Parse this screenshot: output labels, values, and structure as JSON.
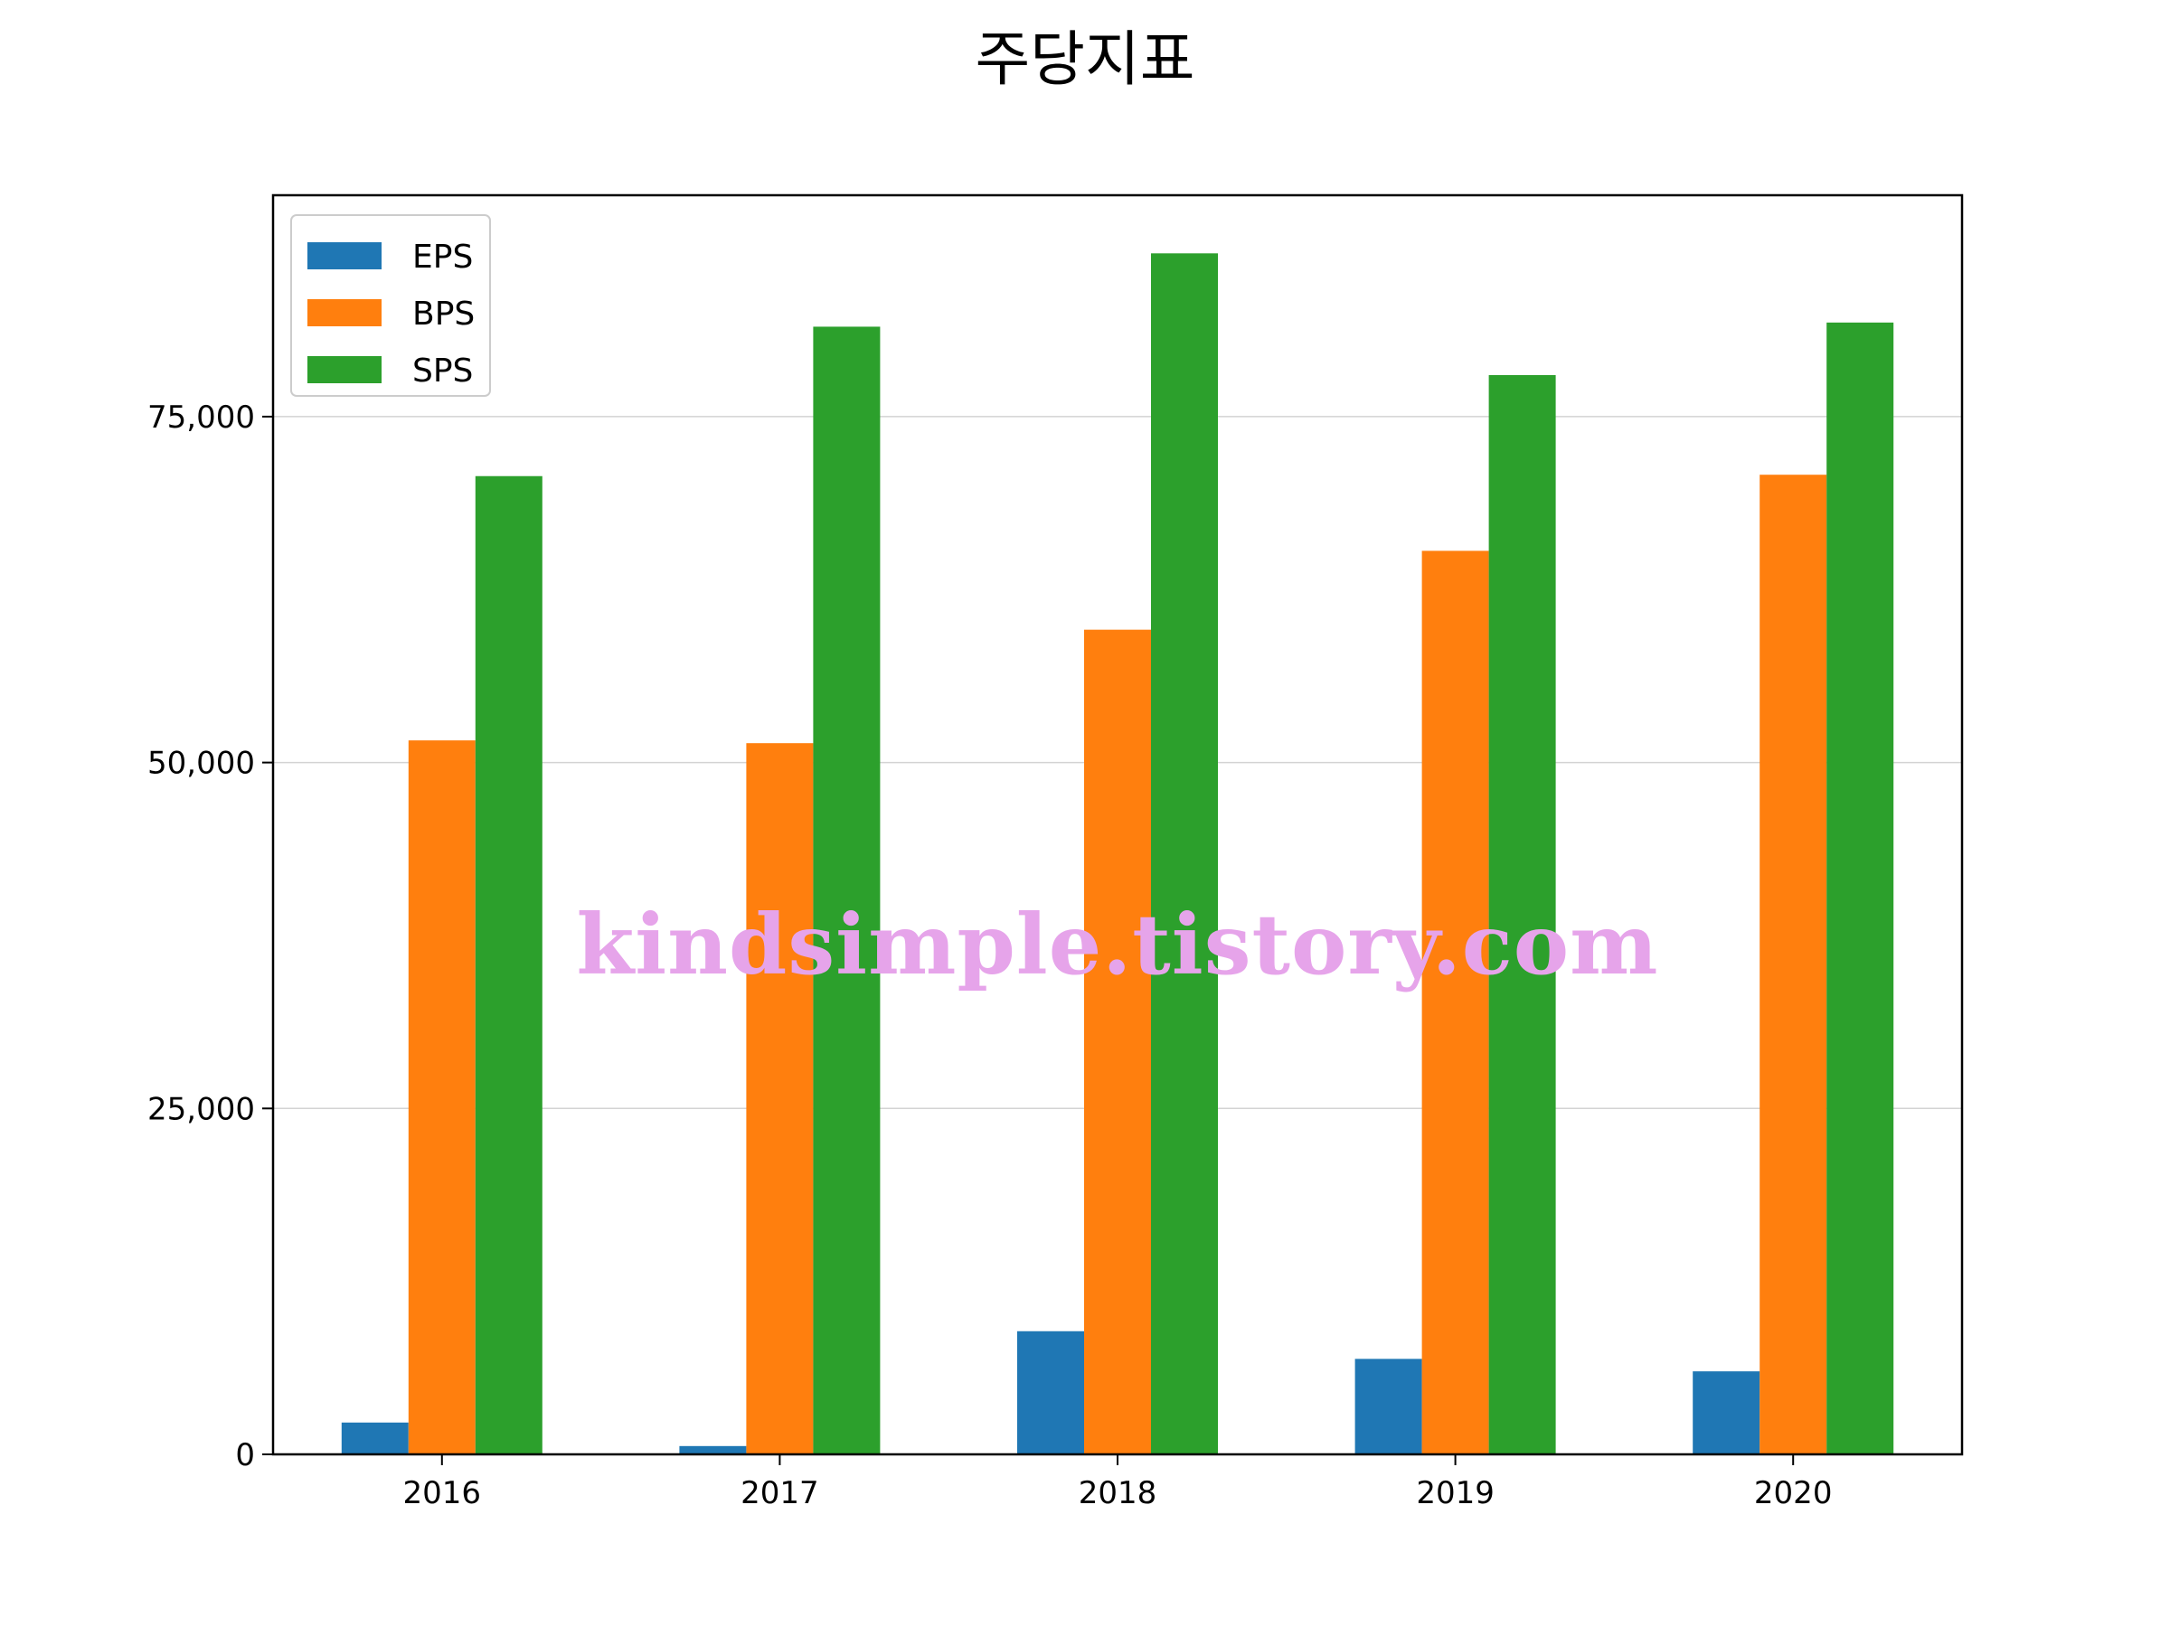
{
  "chart_data": {
    "type": "bar",
    "title": "주당지표",
    "xlabel": "",
    "ylabel": "",
    "categories": [
      "2016",
      "2017",
      "2018",
      "2019",
      "2020"
    ],
    "series": [
      {
        "name": "EPS",
        "color": "#1f77b4",
        "values": [
          2300,
          600,
          8900,
          6900,
          6000
        ]
      },
      {
        "name": "BPS",
        "color": "#ff7f0e",
        "values": [
          51600,
          51400,
          59600,
          65300,
          70800
        ]
      },
      {
        "name": "SPS",
        "color": "#2ca02c",
        "values": [
          70700,
          81500,
          86800,
          78000,
          81800
        ]
      }
    ],
    "ylim": [
      0,
      91000
    ],
    "yticks": [
      0,
      25000,
      50000,
      75000
    ],
    "ytick_labels": [
      "0",
      "25,000",
      "50,000",
      "75,000"
    ],
    "grid": "y-major",
    "legend_position": "top-left",
    "watermark": "kindsimple.tistory.com"
  }
}
